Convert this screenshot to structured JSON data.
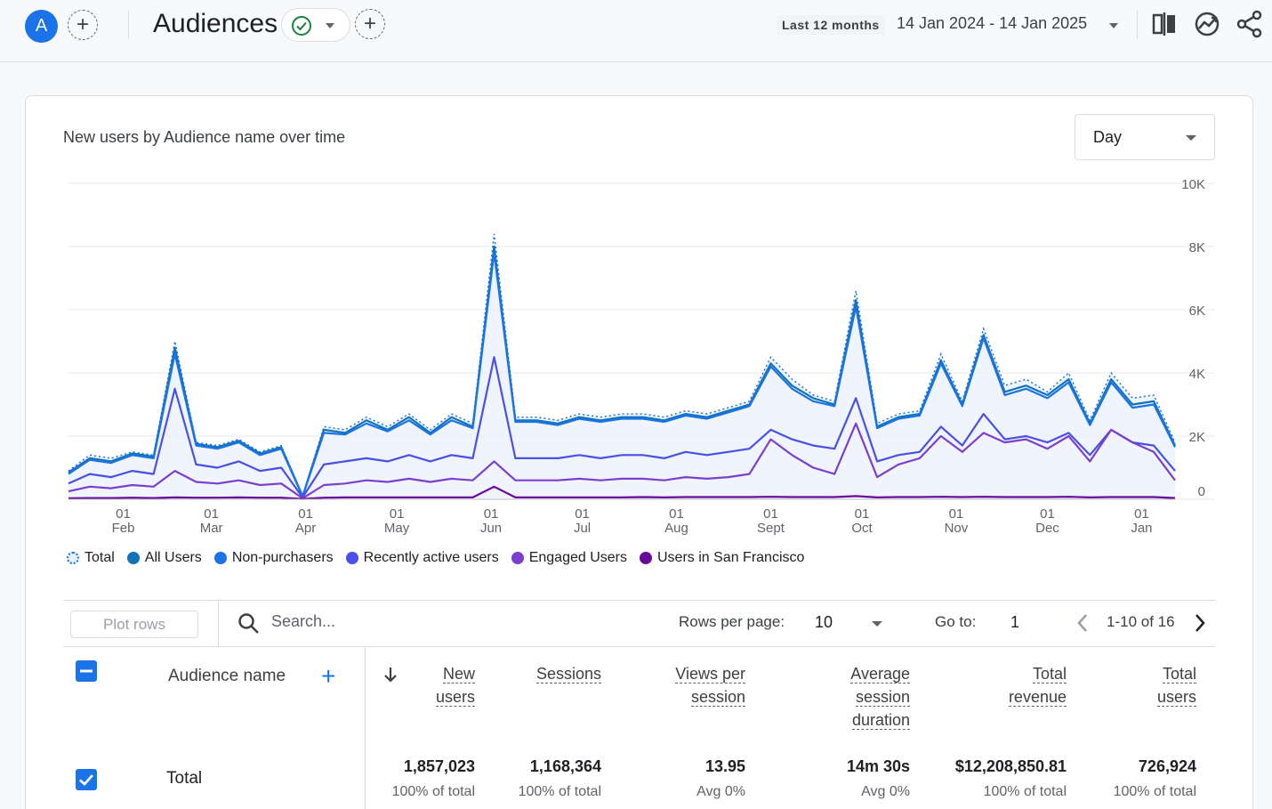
{
  "header": {
    "avatar_letter": "A",
    "title": "Audiences",
    "date_preset": "Last 12 months",
    "date_range": "14 Jan 2024 - 14 Jan 2025"
  },
  "icons": {
    "compare": "compare-icon",
    "insights": "insights-icon",
    "share": "share-icon"
  },
  "chart": {
    "title": "New users by Audience name over time",
    "granularity": "Day"
  },
  "chart_data": {
    "type": "line",
    "x_ticks": [
      {
        "day": "01",
        "month": "Feb"
      },
      {
        "day": "01",
        "month": "Mar"
      },
      {
        "day": "01",
        "month": "Apr"
      },
      {
        "day": "01",
        "month": "May"
      },
      {
        "day": "01",
        "month": "Jun"
      },
      {
        "day": "01",
        "month": "Jul"
      },
      {
        "day": "01",
        "month": "Aug"
      },
      {
        "day": "01",
        "month": "Sept"
      },
      {
        "day": "01",
        "month": "Oct"
      },
      {
        "day": "01",
        "month": "Nov"
      },
      {
        "day": "01",
        "month": "Dec"
      },
      {
        "day": "01",
        "month": "Jan"
      }
    ],
    "y_ticks": [
      "10K",
      "8K",
      "6K",
      "4K",
      "2K",
      "0"
    ],
    "ylim": [
      0,
      10000
    ],
    "grid": true,
    "legend_position": "bottom-left",
    "x": [
      "2024-01-14",
      "2024-01-21",
      "2024-01-28",
      "2024-02-04",
      "2024-02-11",
      "2024-02-18",
      "2024-02-25",
      "2024-03-03",
      "2024-03-10",
      "2024-03-17",
      "2024-03-24",
      "2024-03-31",
      "2024-04-07",
      "2024-04-14",
      "2024-04-21",
      "2024-04-28",
      "2024-05-05",
      "2024-05-12",
      "2024-05-19",
      "2024-05-26",
      "2024-06-02",
      "2024-06-09",
      "2024-06-16",
      "2024-06-23",
      "2024-06-30",
      "2024-07-07",
      "2024-07-14",
      "2024-07-21",
      "2024-07-28",
      "2024-08-04",
      "2024-08-11",
      "2024-08-18",
      "2024-08-25",
      "2024-09-01",
      "2024-09-08",
      "2024-09-15",
      "2024-09-22",
      "2024-09-29",
      "2024-10-06",
      "2024-10-13",
      "2024-10-20",
      "2024-10-27",
      "2024-11-03",
      "2024-11-10",
      "2024-11-17",
      "2024-11-24",
      "2024-12-01",
      "2024-12-08",
      "2024-12-15",
      "2024-12-22",
      "2024-12-29",
      "2025-01-05",
      "2025-01-12"
    ],
    "series": [
      {
        "name": "Total",
        "values": [
          900,
          1400,
          1300,
          1500,
          1400,
          5000,
          1800,
          1700,
          1900,
          1500,
          1700,
          100,
          2300,
          2200,
          2600,
          2300,
          2700,
          2200,
          2700,
          2400,
          8400,
          2600,
          2600,
          2500,
          2700,
          2600,
          2700,
          2700,
          2600,
          2800,
          2700,
          2900,
          3100,
          4500,
          3800,
          3300,
          3100,
          6600,
          2400,
          2700,
          2800,
          4600,
          3100,
          5400,
          3600,
          3800,
          3400,
          4000,
          2500,
          4000,
          3200,
          3300,
          1800
        ]
      },
      {
        "name": "All Users",
        "values": [
          850,
          1300,
          1200,
          1450,
          1350,
          4800,
          1750,
          1650,
          1850,
          1450,
          1650,
          100,
          2200,
          2100,
          2500,
          2200,
          2600,
          2100,
          2600,
          2300,
          8000,
          2500,
          2500,
          2400,
          2600,
          2500,
          2600,
          2600,
          2500,
          2700,
          2600,
          2800,
          3000,
          4300,
          3600,
          3200,
          3000,
          6300,
          2300,
          2600,
          2700,
          4400,
          3000,
          5200,
          3400,
          3600,
          3300,
          3800,
          2400,
          3800,
          3000,
          3100,
          1700
        ]
      },
      {
        "name": "Non-purchasers",
        "values": [
          800,
          1250,
          1150,
          1400,
          1300,
          4600,
          1700,
          1600,
          1800,
          1400,
          1600,
          90,
          2100,
          2050,
          2400,
          2150,
          2500,
          2050,
          2500,
          2250,
          7800,
          2450,
          2450,
          2350,
          2550,
          2450,
          2550,
          2550,
          2450,
          2650,
          2550,
          2750,
          2950,
          4200,
          3500,
          3100,
          2950,
          6100,
          2250,
          2550,
          2650,
          4300,
          2950,
          5100,
          3300,
          3500,
          3200,
          3700,
          2350,
          3700,
          2900,
          3000,
          1650
        ]
      },
      {
        "name": "Recently active users",
        "values": [
          500,
          800,
          700,
          900,
          800,
          3500,
          1100,
          1000,
          1200,
          900,
          1000,
          60,
          1100,
          1200,
          1300,
          1200,
          1400,
          1200,
          1400,
          1300,
          4500,
          1300,
          1300,
          1300,
          1400,
          1300,
          1400,
          1400,
          1300,
          1500,
          1400,
          1500,
          1600,
          2200,
          1900,
          1700,
          1600,
          3200,
          1200,
          1400,
          1500,
          2300,
          1700,
          2700,
          1900,
          2000,
          1800,
          2100,
          1400,
          2200,
          1800,
          1700,
          900
        ]
      },
      {
        "name": "Engaged Users",
        "values": [
          250,
          400,
          350,
          450,
          400,
          900,
          550,
          500,
          600,
          450,
          500,
          30,
          450,
          500,
          600,
          550,
          650,
          550,
          650,
          600,
          1200,
          600,
          600,
          600,
          650,
          600,
          650,
          650,
          600,
          700,
          650,
          700,
          800,
          1900,
          1400,
          1000,
          800,
          2400,
          700,
          1100,
          1300,
          2000,
          1500,
          2100,
          1800,
          1900,
          1600,
          2000,
          1200,
          2200,
          1800,
          1500,
          600
        ]
      },
      {
        "name": "Users in San Francisco",
        "values": [
          30,
          40,
          40,
          50,
          40,
          60,
          50,
          50,
          60,
          50,
          50,
          10,
          50,
          60,
          60,
          60,
          60,
          60,
          60,
          60,
          400,
          60,
          60,
          60,
          60,
          60,
          60,
          70,
          60,
          70,
          70,
          70,
          70,
          80,
          70,
          70,
          70,
          100,
          60,
          70,
          70,
          80,
          70,
          80,
          70,
          70,
          70,
          80,
          60,
          70,
          70,
          70,
          40
        ]
      }
    ]
  },
  "legend": [
    {
      "label": "Total",
      "color": "#1a73e8",
      "style": "dotted"
    },
    {
      "label": "All Users",
      "color": "#1273b6"
    },
    {
      "label": "Non-purchasers",
      "color": "#1a73e8"
    },
    {
      "label": "Recently active users",
      "color": "#4a4fe8"
    },
    {
      "label": "Engaged Users",
      "color": "#7b3fd0"
    },
    {
      "label": "Users in San Francisco",
      "color": "#6a0a9a"
    }
  ],
  "table_controls": {
    "plot_rows": "Plot rows",
    "search_placeholder": "Search...",
    "rows_per_page_label": "Rows per page:",
    "rows_per_page": "10",
    "goto_label": "Go to:",
    "goto_value": "1",
    "page_range": "1-10 of 16"
  },
  "table": {
    "dimension_header": "Audience name",
    "columns": [
      {
        "line1": "New",
        "line2": "users",
        "line3": ""
      },
      {
        "line1": "Sessions",
        "line2": "",
        "line3": ""
      },
      {
        "line1": "Views per",
        "line2": "session",
        "line3": ""
      },
      {
        "line1": "Average",
        "line2": "session",
        "line3": "duration"
      },
      {
        "line1": "Total",
        "line2": "revenue",
        "line3": ""
      },
      {
        "line1": "Total",
        "line2": "users",
        "line3": ""
      }
    ],
    "total_row": {
      "label": "Total",
      "values": [
        "1,857,023",
        "1,168,364",
        "13.95",
        "14m 30s",
        "$12,208,850.81",
        "726,924"
      ],
      "subs": [
        "100% of total",
        "100% of total",
        "Avg 0%",
        "Avg 0%",
        "100% of total",
        "100% of total"
      ]
    }
  }
}
